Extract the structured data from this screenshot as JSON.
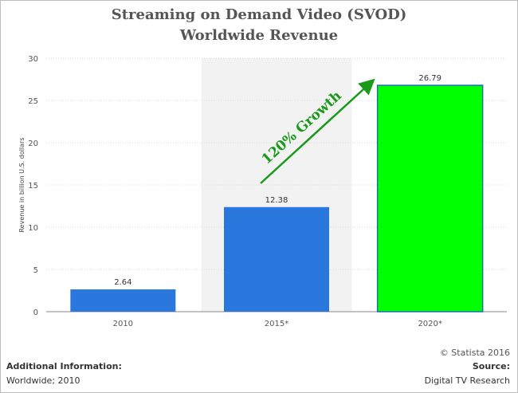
{
  "chart_data": {
    "type": "bar",
    "title_line1": "Streaming on Demand Video (SVOD)",
    "title_line2": "Worldwide Revenue",
    "ylabel": "Revenue in billion U.S. dollars",
    "categories": [
      "2010",
      "2015*",
      "2020*"
    ],
    "values": [
      2.64,
      12.38,
      26.79
    ],
    "value_labels": [
      "2.64",
      "12.38",
      "26.79"
    ],
    "yticks": [
      "0",
      "5",
      "10",
      "15",
      "20",
      "25",
      "30"
    ],
    "ylim": [
      0,
      30
    ],
    "grid": true,
    "bar_colors": [
      "#2a78de",
      "#2a78de",
      "#00ff00"
    ],
    "highlight_border": "#1f6fb0",
    "annotation": "120% Growth",
    "annotation_color": "#1a9a1a",
    "shaded_category": "2015*"
  },
  "footer": {
    "copyright": "© Statista 2016",
    "additional_title": "Additional Information:",
    "additional_value": "Worldwide; 2010",
    "source_title": "Source:",
    "source_value": "Digital TV Research"
  }
}
